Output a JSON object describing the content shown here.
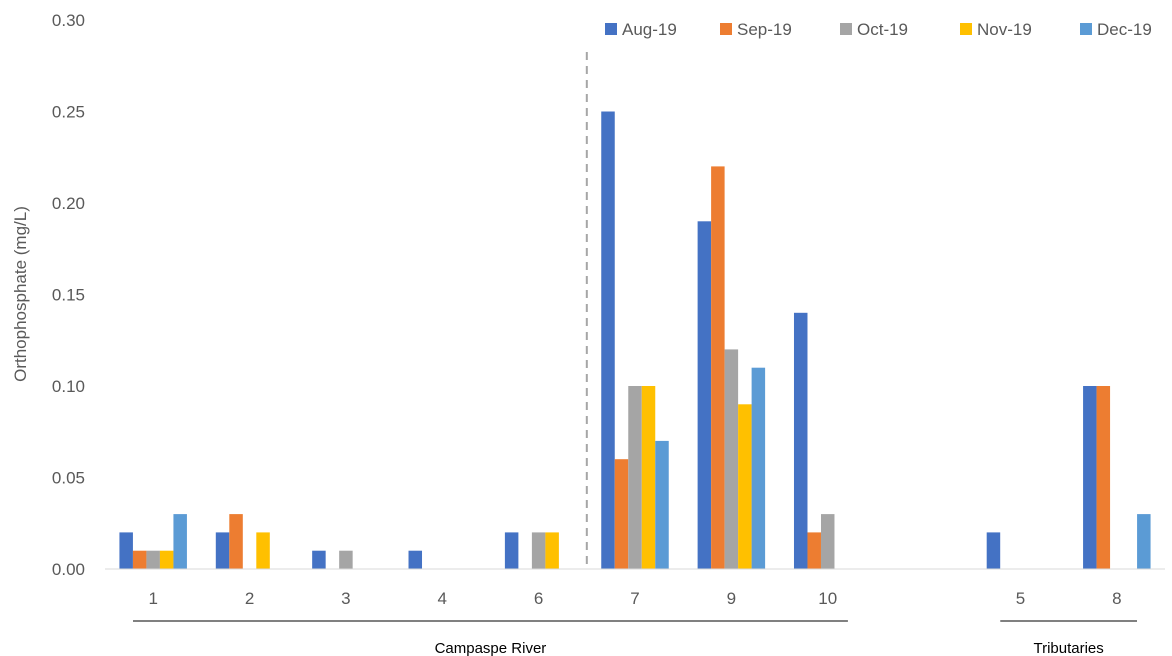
{
  "chart_data": {
    "type": "bar",
    "ylabel": "Orthophosphate (mg/L)",
    "ylim": [
      0,
      0.3
    ],
    "yticks": [
      "0.00",
      "0.05",
      "0.10",
      "0.15",
      "0.20",
      "0.25",
      "0.30"
    ],
    "categories": [
      "1",
      "2",
      "3",
      "4",
      "6",
      "7",
      "9",
      "10",
      "",
      "5",
      "8"
    ],
    "series": [
      {
        "name": "Aug-19",
        "color": "#4472C4",
        "values": [
          0.02,
          0.02,
          0.01,
          0.01,
          0.02,
          0.25,
          0.19,
          0.14,
          null,
          0.02,
          0.1
        ]
      },
      {
        "name": "Sep-19",
        "color": "#ED7D31",
        "values": [
          0.01,
          0.03,
          0,
          0,
          0,
          0.06,
          0.22,
          0.02,
          null,
          0,
          0.1
        ]
      },
      {
        "name": "Oct-19",
        "color": "#A5A5A5",
        "values": [
          0.01,
          0,
          0.01,
          0,
          0.02,
          0.1,
          0.12,
          0.03,
          null,
          0,
          0
        ]
      },
      {
        "name": "Nov-19",
        "color": "#FFC000",
        "values": [
          0.01,
          0.02,
          0,
          0,
          0.02,
          0.1,
          0.09,
          0,
          null,
          0,
          0
        ]
      },
      {
        "name": "Dec-19",
        "color": "#5B9BD5",
        "values": [
          0.03,
          0,
          0,
          0,
          0,
          0.07,
          0.11,
          0,
          null,
          0,
          0.03
        ]
      }
    ],
    "groups": [
      {
        "label": "Campaspe River",
        "from": 0,
        "to": 7
      },
      {
        "label": "Tributaries",
        "from": 9,
        "to": 10
      }
    ],
    "divider_after_category": 4,
    "legend_position": "top-right",
    "grid": false
  }
}
